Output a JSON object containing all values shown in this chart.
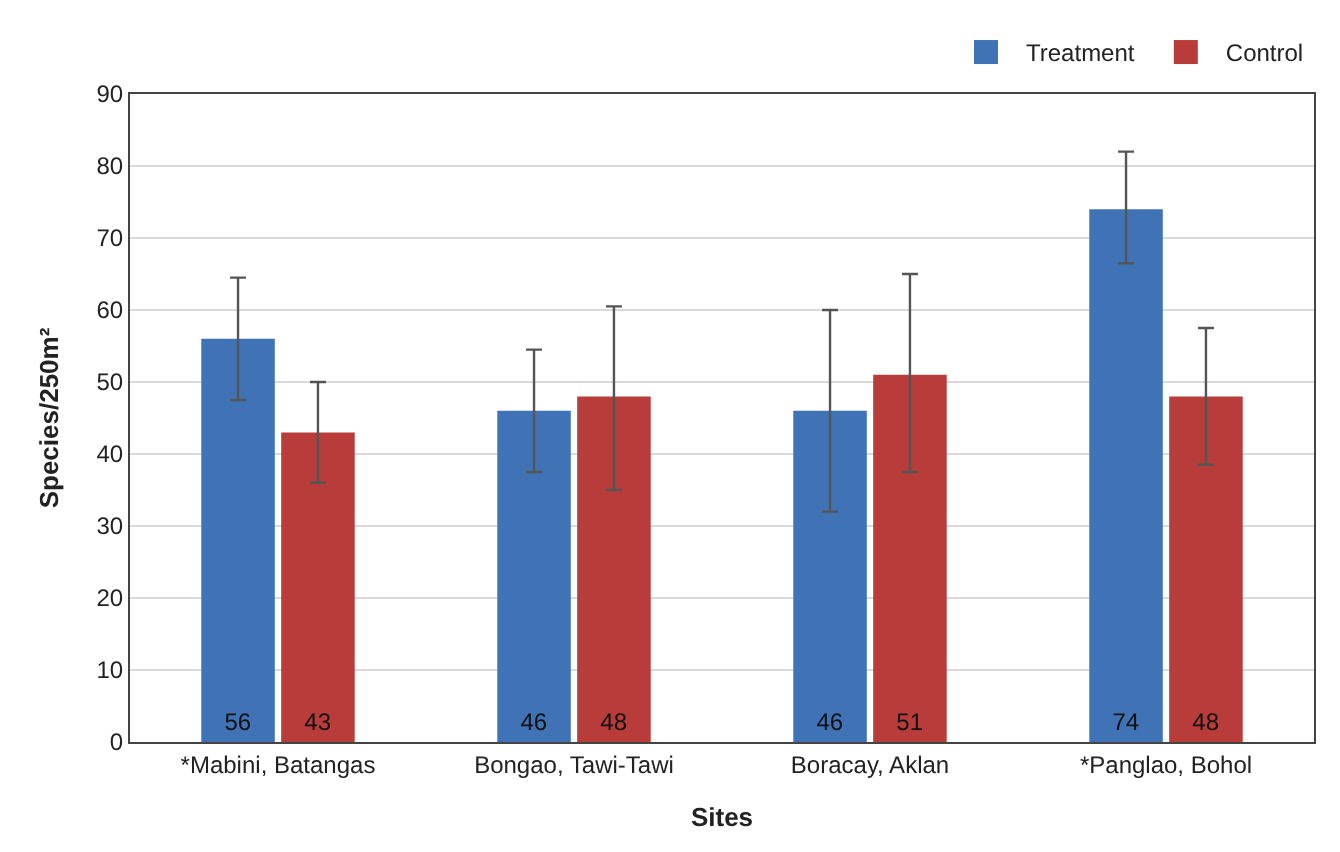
{
  "chart_data": {
    "type": "bar",
    "xlabel": "Sites",
    "ylabel": "Species/250m²",
    "categories": [
      "*Mabini, Batangas",
      "Bongao, Tawi-Tawi",
      "Boracay, Aklan",
      "*Panglao, Bohol"
    ],
    "series": [
      {
        "name": "Treatment",
        "color": "#3f73b5",
        "values": [
          56,
          46,
          46,
          74
        ],
        "errors": [
          [
            47.5,
            64.5
          ],
          [
            37.5,
            54.5
          ],
          [
            32,
            60
          ],
          [
            66.5,
            82
          ]
        ]
      },
      {
        "name": "Control",
        "color": "#b83c3a",
        "values": [
          43,
          48,
          51,
          48
        ],
        "errors": [
          [
            36,
            50
          ],
          [
            35,
            60.5
          ],
          [
            37.5,
            65
          ],
          [
            38.5,
            57.5
          ]
        ]
      }
    ],
    "ylim": [
      0,
      90
    ],
    "yticks": [
      0,
      10,
      20,
      30,
      40,
      50,
      60,
      70,
      80,
      90
    ],
    "grid": "y",
    "legend": "top right",
    "data_labels": true
  }
}
